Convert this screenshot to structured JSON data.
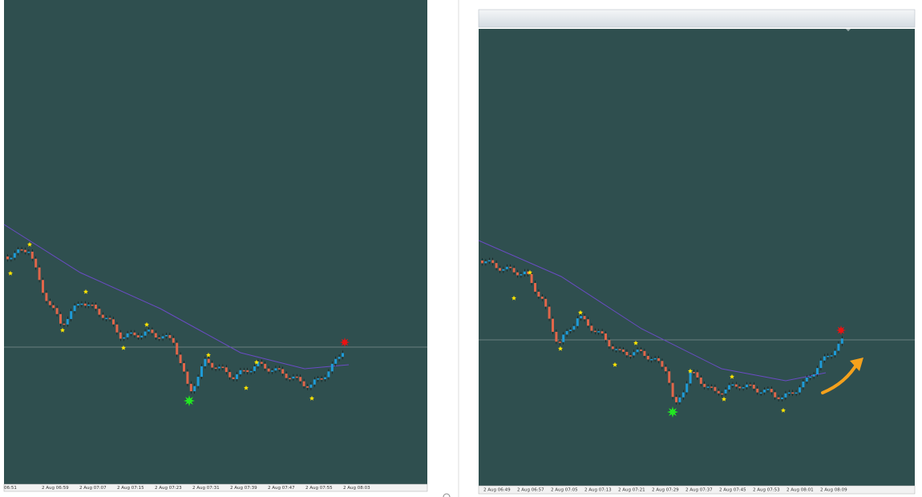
{
  "left_panel": {
    "time_labels": [
      "06:51",
      "2 Aug 06:59",
      "2 Aug 07:07",
      "2 Aug 07:15",
      "2 Aug 07:23",
      "2 Aug 07:31",
      "2 Aug 07:39",
      "2 Aug 07:47",
      "2 Aug 07:55",
      "2 Aug 08:03"
    ]
  },
  "right_panel": {
    "time_labels": [
      "2 Aug 06:49",
      "2 Aug 06:57",
      "2 Aug 07:05",
      "2 Aug 07:13",
      "2 Aug 07:21",
      "2 Aug 07:29",
      "2 Aug 07:37",
      "2 Aug 07:45",
      "2 Aug 07:53",
      "2 Aug 08:01",
      "2 Aug 08:09"
    ]
  }
}
